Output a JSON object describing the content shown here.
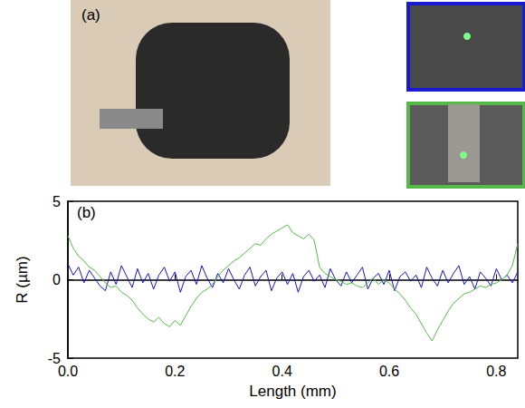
{
  "chart_data": {
    "type": "line",
    "x_label": "Length (mm)",
    "y_label": "R (µm)",
    "annotations": [
      "(a)",
      "(b)"
    ],
    "x": [
      0,
      0.01,
      0.02,
      0.03,
      0.04,
      0.05,
      0.06,
      0.07,
      0.08,
      0.09,
      0.1,
      0.11,
      0.12,
      0.13,
      0.14,
      0.15,
      0.16,
      0.17,
      0.18,
      0.19,
      0.2,
      0.21,
      0.22,
      0.23,
      0.24,
      0.25,
      0.26,
      0.27,
      0.28,
      0.29,
      0.3,
      0.31,
      0.32,
      0.33,
      0.34,
      0.35,
      0.36,
      0.37,
      0.38,
      0.39,
      0.4,
      0.41,
      0.42,
      0.43,
      0.44,
      0.45,
      0.46,
      0.47,
      0.48,
      0.49,
      0.5,
      0.51,
      0.52,
      0.53,
      0.54,
      0.55,
      0.56,
      0.57,
      0.58,
      0.59,
      0.6,
      0.61,
      0.62,
      0.63,
      0.64,
      0.65,
      0.66,
      0.67,
      0.68,
      0.69,
      0.7,
      0.71,
      0.72,
      0.73,
      0.74,
      0.75,
      0.76,
      0.77,
      0.78,
      0.79,
      0.8,
      0.81,
      0.82,
      0.83,
      0.84
    ],
    "series": [
      {
        "color": "#1414c8",
        "values": [
          1.0,
          0.3,
          0.8,
          -0.2,
          0.6,
          0.1,
          -0.4,
          -0.7,
          0.5,
          -0.3,
          0.9,
          0.2,
          -0.5,
          0.7,
          -0.2,
          0.4,
          -0.6,
          0.3,
          0.8,
          -0.1,
          0.5,
          -0.8,
          0.2,
          0.6,
          -0.3,
          0.9,
          0.1,
          -0.5,
          0.4,
          -0.2,
          0.7,
          0.0,
          -0.6,
          0.3,
          0.8,
          -0.4,
          0.2,
          0.6,
          -0.7,
          0.1,
          0.5,
          -0.3,
          0.4,
          -0.8,
          0.2,
          0.6,
          -0.1,
          0.3,
          -0.5,
          0.7,
          0.0,
          -0.4,
          0.5,
          -0.2,
          0.3,
          0.8,
          -0.6,
          0.1,
          0.4,
          -0.3,
          0.6,
          -0.7,
          0.2,
          0.5,
          -0.1,
          0.3,
          -0.5,
          0.8,
          0.1,
          -0.4,
          0.6,
          -0.2,
          0.4,
          0.9,
          -0.3,
          0.2,
          -0.6,
          0.5,
          0.1,
          -0.4,
          0.7,
          0.0,
          0.3,
          -0.2,
          0.5
        ]
      },
      {
        "color": "#55b848",
        "values": [
          2.8,
          2.0,
          1.5,
          1.2,
          0.8,
          0.6,
          0.2,
          -0.2,
          -0.5,
          -0.4,
          -0.8,
          -1.0,
          -1.3,
          -1.8,
          -2.2,
          -2.5,
          -2.7,
          -2.4,
          -2.8,
          -3.0,
          -2.6,
          -2.9,
          -2.3,
          -1.7,
          -1.2,
          -0.8,
          -0.6,
          -0.3,
          0.2,
          0.6,
          0.9,
          1.2,
          1.4,
          1.7,
          2.0,
          2.3,
          2.2,
          2.6,
          2.9,
          3.1,
          3.3,
          3.5,
          3.0,
          2.8,
          2.6,
          2.9,
          2.5,
          0.8,
          0.4,
          0.2,
          0.0,
          -0.1,
          -0.3,
          -0.2,
          -0.4,
          -0.5,
          -0.2,
          0.1,
          -0.3,
          0.0,
          -0.2,
          -0.6,
          -0.9,
          -1.3,
          -1.8,
          -2.2,
          -2.8,
          -3.4,
          -3.9,
          -3.2,
          -2.6,
          -2.0,
          -1.5,
          -1.2,
          -0.9,
          -0.8,
          -0.6,
          -0.4,
          -0.5,
          -0.3,
          -0.2,
          0.0,
          0.3,
          0.9,
          2.3
        ]
      }
    ],
    "xlim": [
      0,
      0.84
    ],
    "xticks": [
      {
        "value": 0,
        "label": "0.0"
      },
      0.2,
      0.4,
      0.6,
      0.8
    ],
    "ylim": [
      -5,
      5
    ],
    "yticks": [
      -5,
      0,
      5
    ],
    "grid": false
  }
}
